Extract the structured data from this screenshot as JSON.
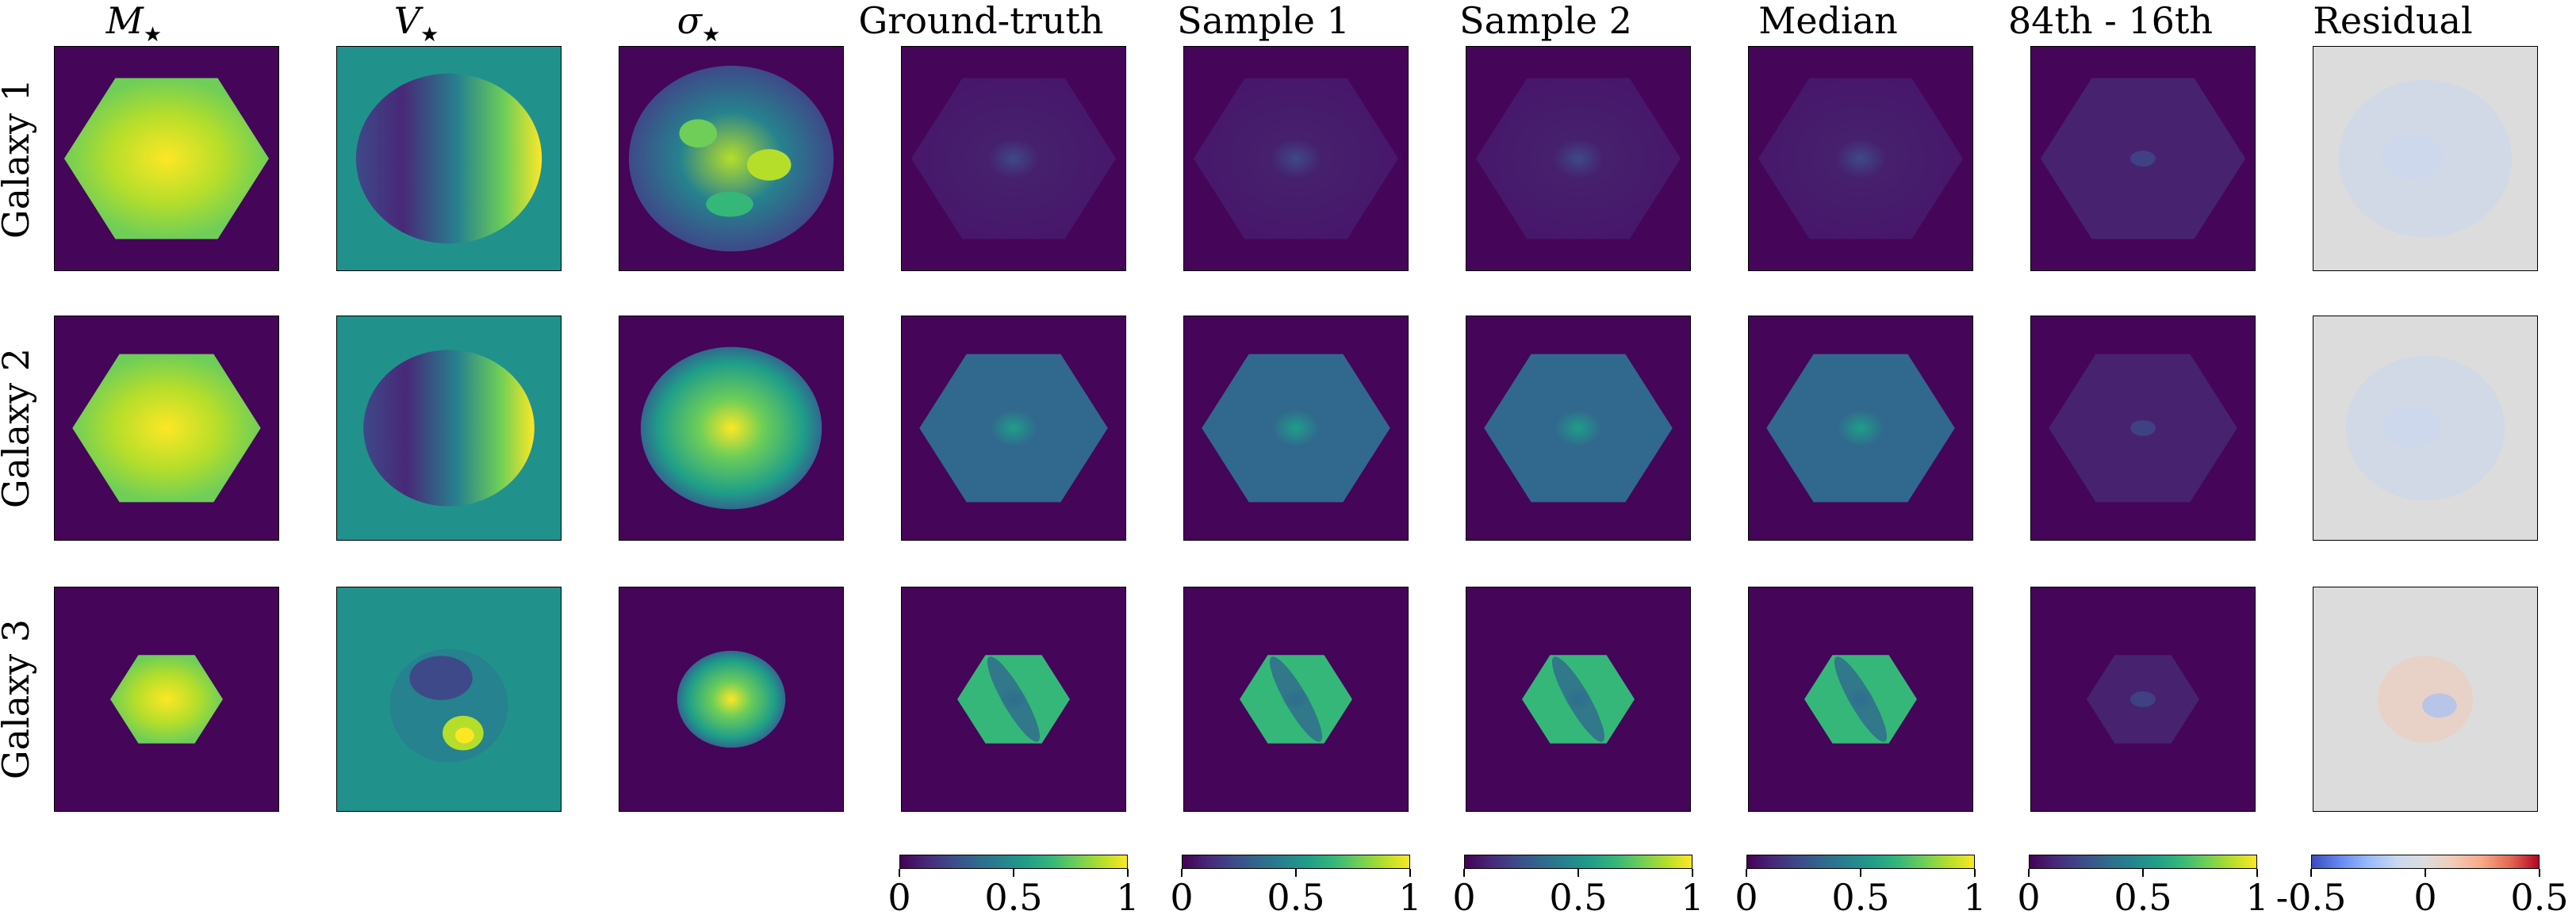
{
  "figure": {
    "columns": [
      {
        "id": "mstar",
        "symbol": "M",
        "subscript": "★"
      },
      {
        "id": "vstar",
        "symbol": "V",
        "subscript": "★"
      },
      {
        "id": "sigma",
        "symbol": "σ",
        "subscript": "★"
      },
      {
        "id": "gt",
        "label": "Ground-truth"
      },
      {
        "id": "s1",
        "label": "Sample 1"
      },
      {
        "id": "s2",
        "label": "Sample 2"
      },
      {
        "id": "median",
        "label": "Median"
      },
      {
        "id": "spread",
        "label": "84th - 16th"
      },
      {
        "id": "residual",
        "label": "Residual"
      }
    ],
    "rows": [
      {
        "label": "Galaxy 1"
      },
      {
        "label": "Galaxy 2"
      },
      {
        "label": "Galaxy 3"
      }
    ],
    "colorbars": [
      {
        "cmap": "viridis",
        "ticks": [
          "0",
          "0.5",
          "1"
        ]
      },
      {
        "cmap": "viridis",
        "ticks": [
          "0",
          "0.5",
          "1"
        ]
      },
      {
        "cmap": "viridis",
        "ticks": [
          "0",
          "0.5",
          "1"
        ]
      },
      {
        "cmap": "viridis",
        "ticks": [
          "0",
          "0.5",
          "1"
        ]
      },
      {
        "cmap": "viridis",
        "ticks": [
          "0",
          "0.5",
          "1"
        ]
      },
      {
        "cmap": "coolwarm",
        "ticks": [
          "-0.5",
          "0",
          "0.5"
        ]
      }
    ]
  },
  "colors": {
    "viridis_low": "#440154",
    "viridis_bg": "#450559",
    "vstar_bg": "#21918c",
    "residual_bg": "#dcdcdc",
    "viridis_stops": [
      "#440154",
      "#482878",
      "#3e4989",
      "#31688e",
      "#26828e",
      "#1f9e89",
      "#35b779",
      "#6ece58",
      "#b5de2b",
      "#fde725"
    ],
    "coolwarm_stops": [
      "#3b4cc0",
      "#6788ee",
      "#9abbff",
      "#c9d7f0",
      "#dddddd",
      "#f2cbb7",
      "#f7a889",
      "#e26952",
      "#b40426"
    ]
  }
}
